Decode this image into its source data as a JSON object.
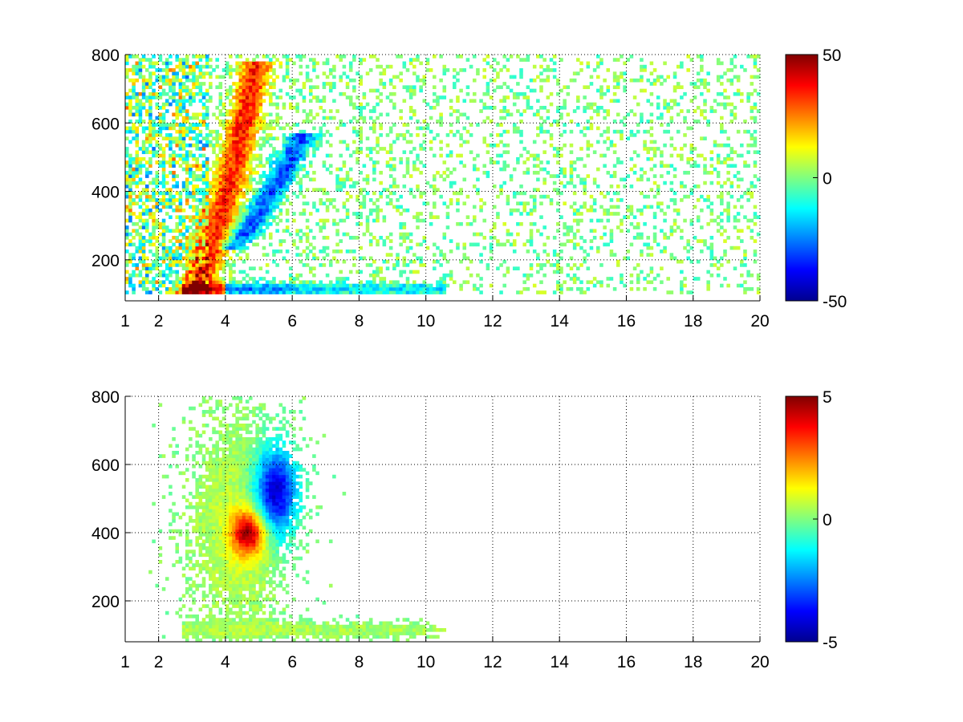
{
  "chart_data": [
    {
      "type": "heatmap",
      "title": "",
      "xlabel": "",
      "ylabel": "",
      "xlim": [
        1,
        20
      ],
      "ylim": [
        80,
        800
      ],
      "x_scale": "linear",
      "y_scale": "linear",
      "grid": true,
      "grid_style": "dotted",
      "x_ticks": [
        1,
        2,
        4,
        6,
        8,
        10,
        12,
        14,
        16,
        18,
        20
      ],
      "x_tick_labels": [
        "1",
        "2",
        "4",
        "6",
        "8",
        "10",
        "12",
        "14",
        "16",
        "18",
        "20"
      ],
      "y_ticks": [
        200,
        400,
        600,
        800
      ],
      "y_tick_labels": [
        "200",
        "400",
        "600",
        "800"
      ],
      "colormap": "jet",
      "clim": [
        -50,
        50
      ],
      "colorbar_ticks": [
        -50,
        0,
        50
      ],
      "colorbar_tick_labels": [
        "-50",
        "0",
        "50"
      ],
      "masked_value_color": "#ffffff",
      "features": [
        {
          "name": "positive ridge",
          "x_range": [
            2.7,
            5.2
          ],
          "y_range": [
            100,
            760
          ],
          "value": 35
        },
        {
          "name": "negative ridge",
          "x_range": [
            4.0,
            6.6
          ],
          "y_range": [
            230,
            560
          ],
          "value": -30
        },
        {
          "name": "low band",
          "x_range": [
            2.7,
            10.5
          ],
          "y_range": [
            90,
            140
          ],
          "value": -20
        }
      ]
    },
    {
      "type": "heatmap",
      "title": "",
      "xlabel": "",
      "ylabel": "",
      "xlim": [
        1,
        20
      ],
      "ylim": [
        80,
        800
      ],
      "x_scale": "linear",
      "y_scale": "linear",
      "grid": true,
      "grid_style": "dotted",
      "x_ticks": [
        1,
        2,
        4,
        6,
        8,
        10,
        12,
        14,
        16,
        18,
        20
      ],
      "x_tick_labels": [
        "1",
        "2",
        "4",
        "6",
        "8",
        "10",
        "12",
        "14",
        "16",
        "18",
        "20"
      ],
      "y_ticks": [
        200,
        400,
        600,
        800
      ],
      "y_tick_labels": [
        "200",
        "400",
        "600",
        "800"
      ],
      "colormap": "jet",
      "clim": [
        -5,
        5
      ],
      "colorbar_ticks": [
        -5,
        0,
        5
      ],
      "colorbar_tick_labels": [
        "-5",
        "0",
        "5"
      ],
      "masked_value_color": "#ffffff",
      "features": [
        {
          "name": "main cluster",
          "x_range": [
            3.0,
            6.0
          ],
          "y_range": [
            150,
            760
          ],
          "value": 0.8
        },
        {
          "name": "strong positive patch",
          "x_range": [
            4.3,
            5.4
          ],
          "y_range": [
            340,
            520
          ],
          "value": 4.5
        },
        {
          "name": "strong negative patch",
          "x_range": [
            4.8,
            6.4
          ],
          "y_range": [
            380,
            660
          ],
          "value": -4.5
        },
        {
          "name": "low band",
          "x_range": [
            2.7,
            10.5
          ],
          "y_range": [
            90,
            140
          ],
          "value": 0.5
        }
      ]
    }
  ]
}
